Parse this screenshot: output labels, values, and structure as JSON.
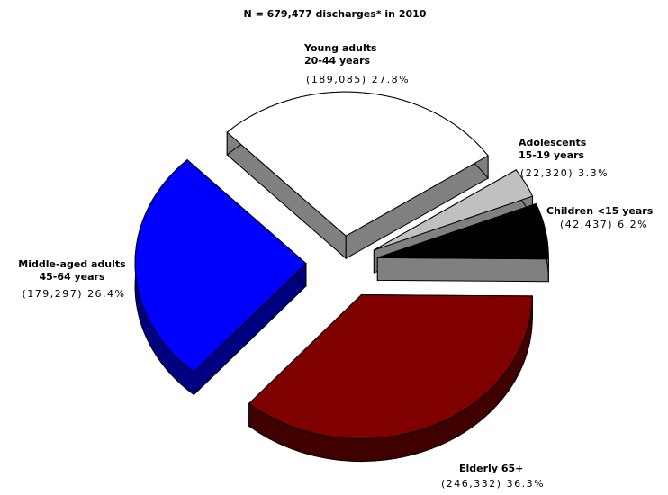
{
  "chart_data": {
    "type": "pie",
    "title": "N = 679,477 discharges* in 2010",
    "categories": [
      [
        "Young adults",
        "20-44 years"
      ],
      [
        "Adolescents",
        "15-19 years"
      ],
      [
        "Children <15 years"
      ],
      [
        "Elderly 65+"
      ],
      [
        "Middle-aged adults",
        "45-64 years"
      ]
    ],
    "values": [
      189085,
      22320,
      42437,
      246332,
      179297
    ],
    "value_labels": [
      "(189,085)",
      "(22,320)",
      "(42,437)",
      "(246,332)",
      "(179,297)"
    ],
    "percents": [
      27.8,
      3.3,
      6.2,
      36.3,
      26.4
    ],
    "percent_labels": [
      "27.8%",
      "3.3%",
      "6.2%",
      "36.3%",
      "26.4%"
    ],
    "colors": [
      "#ffffff",
      "#c0c0c0",
      "#000000",
      "#800000",
      "#0000ff"
    ],
    "side_colors": [
      "#808080",
      "#808080",
      "#808080",
      "#400000",
      "#000080"
    ]
  }
}
